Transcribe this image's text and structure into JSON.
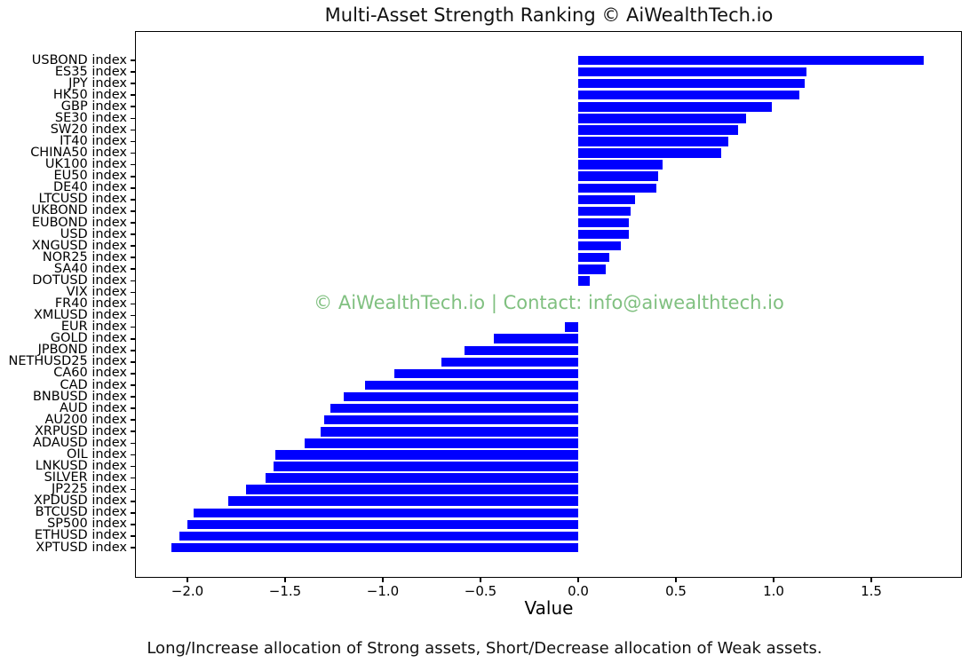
{
  "watermark": "© AiWealthTech.io | Contact: info@aiwealthtech.io",
  "caption": "Long/Increase allocation of Strong assets, Short/Decrease allocation of Weak assets.",
  "chart_data": {
    "type": "bar",
    "orientation": "horizontal",
    "title": "Multi-Asset Strength Ranking © AiWealthTech.io",
    "xlabel": "Value",
    "ylabel": "",
    "xlim": [
      -2.26,
      1.96
    ],
    "x_ticks": [
      -2.0,
      -1.5,
      -1.0,
      -0.5,
      0.0,
      0.5,
      1.0,
      1.5
    ],
    "grid": false,
    "legend": "none",
    "bar_color": "#0000ff",
    "watermark_color": "#80c080",
    "axis_color": "#000000",
    "categories": [
      "USBOND index",
      "ES35 index",
      "JPY index",
      "HK50 index",
      "GBP index",
      "SE30 index",
      "SW20 index",
      "IT40 index",
      "CHINA50 index",
      "UK100 index",
      "EU50 index",
      "DE40 index",
      "LTCUSD index",
      "UKBOND index",
      "EUBOND index",
      "USD index",
      "XNGUSD index",
      "NOR25 index",
      "SA40 index",
      "DOTUSD index",
      "VIX index",
      "FR40 index",
      "XMLUSD index",
      "EUR index",
      "GOLD index",
      "JPBOND index",
      "NETHUSD25 index",
      "CA60 index",
      "CAD index",
      "BNBUSD index",
      "AUD index",
      "AU200 index",
      "XRPUSD index",
      "ADAUSD index",
      "OIL index",
      "LNKUSD index",
      "SILVER index",
      "JP225 index",
      "XPDUSD index",
      "BTCUSD index",
      "SP500 index",
      "ETHUSD index",
      "XPTUSD index"
    ],
    "values": [
      1.77,
      1.17,
      1.16,
      1.13,
      0.99,
      0.86,
      0.82,
      0.77,
      0.73,
      0.43,
      0.41,
      0.4,
      0.29,
      0.27,
      0.26,
      0.26,
      0.22,
      0.16,
      0.14,
      0.06,
      0.0,
      0.0,
      0.0,
      -0.07,
      -0.43,
      -0.58,
      -0.7,
      -0.94,
      -1.09,
      -1.2,
      -1.27,
      -1.3,
      -1.32,
      -1.4,
      -1.55,
      -1.56,
      -1.6,
      -1.7,
      -1.79,
      -1.97,
      -2.0,
      -2.04,
      -2.08
    ]
  }
}
